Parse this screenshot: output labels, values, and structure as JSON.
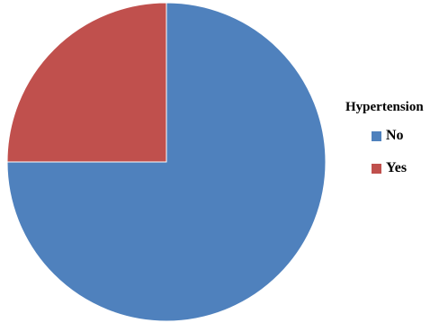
{
  "chart_data": {
    "type": "pie",
    "legend_title": "Hypertension",
    "legend_position": "right",
    "slices": [
      {
        "label": "No",
        "value": 75,
        "color": "#4F81BD"
      },
      {
        "label": "Yes",
        "value": 25,
        "color": "#C0504D"
      }
    ],
    "start_angle": "12 o'clock",
    "direction": "clockwise"
  }
}
